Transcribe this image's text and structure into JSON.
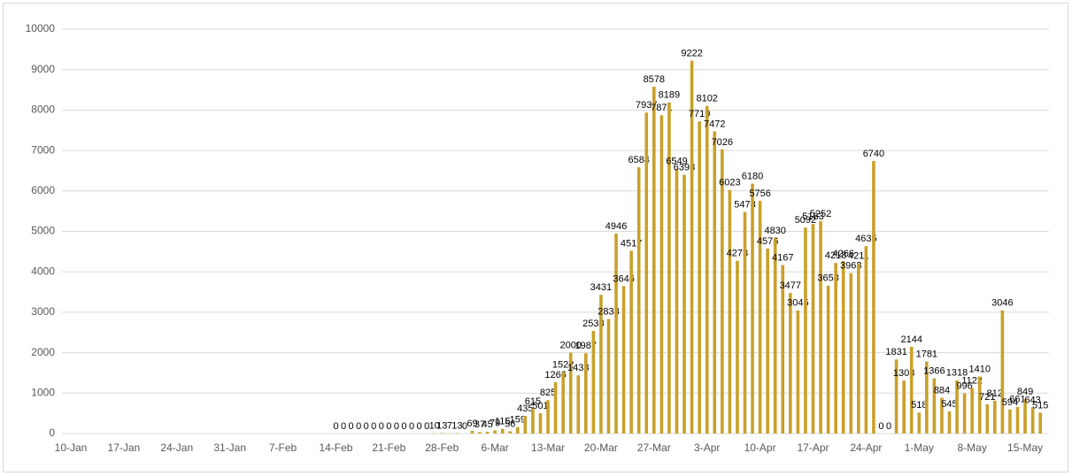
{
  "chart_data": {
    "type": "bar",
    "color": "#c9a02a",
    "grid": true,
    "ylim": [
      0,
      10000
    ],
    "yticks": [
      0,
      1000,
      2000,
      3000,
      4000,
      5000,
      6000,
      7000,
      8000,
      9000,
      10000
    ],
    "categories": [
      "10-Jan",
      null,
      null,
      null,
      null,
      null,
      null,
      "17-Jan",
      null,
      null,
      null,
      null,
      null,
      null,
      "24-Jan",
      null,
      null,
      null,
      null,
      null,
      null,
      "31-Jan",
      null,
      null,
      null,
      null,
      null,
      null,
      "7-Feb",
      null,
      null,
      null,
      null,
      null,
      null,
      "14-Feb",
      null,
      null,
      null,
      null,
      null,
      null,
      "21-Feb",
      null,
      null,
      null,
      null,
      null,
      null,
      "28-Feb",
      null,
      null,
      null,
      null,
      null,
      null,
      "6-Mar",
      null,
      null,
      null,
      null,
      null,
      null,
      "13-Mar",
      null,
      null,
      null,
      null,
      null,
      null,
      "20-Mar",
      null,
      null,
      null,
      null,
      null,
      null,
      "27-Mar",
      null,
      null,
      null,
      null,
      null,
      null,
      "3-Apr",
      null,
      null,
      null,
      null,
      null,
      null,
      "10-Apr",
      null,
      null,
      null,
      null,
      null,
      null,
      "17-Apr",
      null,
      null,
      null,
      null,
      null,
      null,
      "24-Apr",
      null,
      null,
      null,
      null,
      null,
      null,
      "1-May",
      null,
      null,
      null,
      null,
      null,
      null,
      "8-May",
      null,
      null,
      null,
      null,
      null,
      null,
      "15-May",
      null,
      null
    ],
    "values": [
      null,
      null,
      null,
      null,
      null,
      null,
      null,
      null,
      null,
      null,
      null,
      null,
      null,
      null,
      null,
      null,
      null,
      null,
      null,
      null,
      null,
      null,
      null,
      null,
      null,
      null,
      null,
      null,
      null,
      null,
      null,
      null,
      null,
      null,
      null,
      0,
      0,
      0,
      0,
      0,
      0,
      0,
      0,
      0,
      0,
      0,
      0,
      0,
      10,
      13,
      7,
      13,
      0,
      69,
      37,
      45,
      79,
      115,
      56,
      159,
      435,
      615,
      501,
      825,
      1266,
      1522,
      2000,
      1438,
      1987,
      2538,
      3431,
      2833,
      4946,
      3646,
      4517,
      6584,
      7937,
      8578,
      7871,
      8189,
      6549,
      6398,
      9222,
      7719,
      8102,
      7472,
      7026,
      6023,
      4273,
      5478,
      6180,
      5756,
      4576,
      4830,
      4167,
      3477,
      3045,
      5092,
      5183,
      5252,
      3658,
      4218,
      4266,
      3968,
      4211,
      4635,
      6740,
      0,
      0,
      1831,
      1308,
      2144,
      518,
      1781,
      1366,
      884,
      545,
      1318,
      996,
      1122,
      1410,
      721,
      812,
      3046,
      594,
      661,
      849,
      643,
      515
    ]
  }
}
